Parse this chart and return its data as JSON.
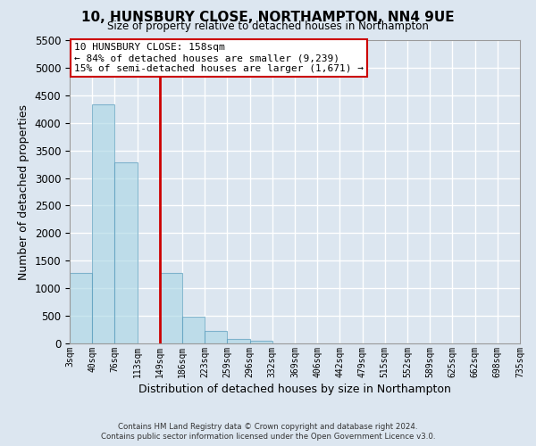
{
  "title": "10, HUNSBURY CLOSE, NORTHAMPTON, NN4 9UE",
  "subtitle": "Size of property relative to detached houses in Northampton",
  "xlabel": "Distribution of detached houses by size in Northampton",
  "ylabel": "Number of detached properties",
  "footer_line1": "Contains HM Land Registry data © Crown copyright and database right 2024.",
  "footer_line2": "Contains public sector information licensed under the Open Government Licence v3.0.",
  "bin_labels": [
    "3sqm",
    "40sqm",
    "76sqm",
    "113sqm",
    "149sqm",
    "186sqm",
    "223sqm",
    "259sqm",
    "296sqm",
    "332sqm",
    "369sqm",
    "406sqm",
    "442sqm",
    "479sqm",
    "515sqm",
    "552sqm",
    "589sqm",
    "625sqm",
    "662sqm",
    "698sqm",
    "735sqm"
  ],
  "bar_heights": [
    1270,
    4330,
    3290,
    0,
    1280,
    480,
    230,
    80,
    50,
    0,
    0,
    0,
    0,
    0,
    0,
    0,
    0,
    0,
    0,
    0
  ],
  "bar_color": "#add8e6",
  "bar_edge_color": "#5599bb",
  "bar_alpha": 0.65,
  "vline_color": "#cc0000",
  "ylim": [
    0,
    5500
  ],
  "yticks": [
    0,
    500,
    1000,
    1500,
    2000,
    2500,
    3000,
    3500,
    4000,
    4500,
    5000,
    5500
  ],
  "annotation_title": "10 HUNSBURY CLOSE: 158sqm",
  "annotation_line1": "← 84% of detached houses are smaller (9,239)",
  "annotation_line2": "15% of semi-detached houses are larger (1,671) →",
  "annotation_box_color": "#ffffff",
  "annotation_box_edge_color": "#cc0000",
  "bg_color": "#dce6f0",
  "plot_bg_color": "#dce6f0",
  "grid_color": "#ffffff"
}
